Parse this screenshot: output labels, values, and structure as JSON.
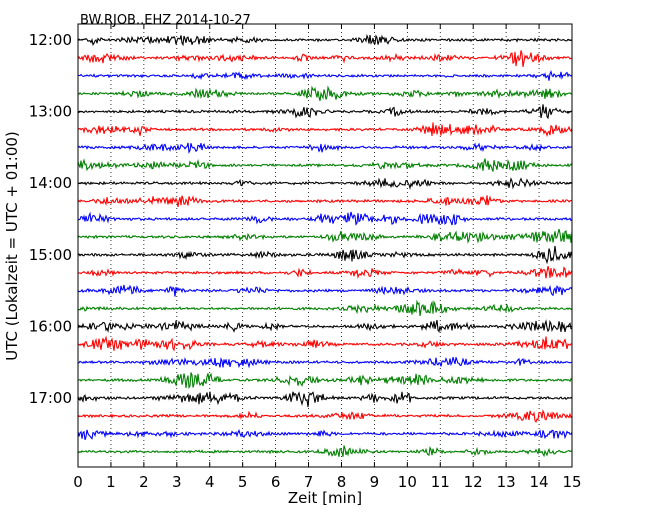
{
  "chart_data": {
    "type": "line",
    "title": "BW.RJOB..EHZ 2014-10-27",
    "xlabel": "Zeit  [min]",
    "ylabel": "UTC (Lokalzeit = UTC + 01:00)",
    "xlim": [
      0,
      15
    ],
    "x_ticks": [
      "0",
      "1",
      "2",
      "3",
      "4",
      "5",
      "6",
      "7",
      "8",
      "9",
      "10",
      "11",
      "12",
      "13",
      "14",
      "15"
    ],
    "y_tick_labels": [
      "12:00",
      "13:00",
      "14:00",
      "15:00",
      "16:00",
      "17:00"
    ],
    "grid": "vertical dotted lines at every minute",
    "row_interval_minutes": 15,
    "start_time": "12:00",
    "row_count": 24,
    "row_colors": [
      "#000000",
      "#ff0000",
      "#0000ff",
      "#008000"
    ],
    "series_note": "one seismogram trace per 15-minute row, colors cycling black, red, blue, green"
  }
}
